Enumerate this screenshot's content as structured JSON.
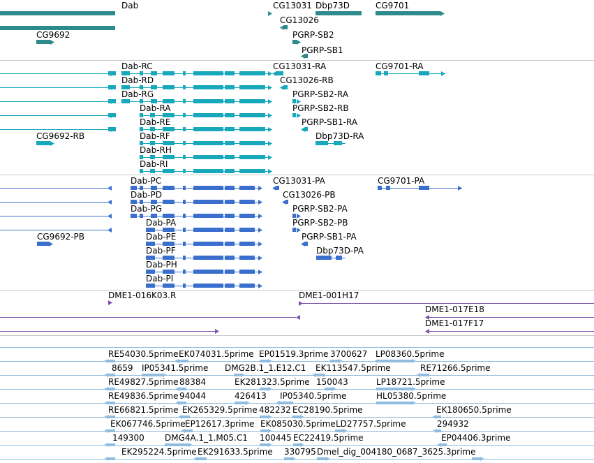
{
  "colors": {
    "gene": "#2e8b8b",
    "mrna": "#17a8bb",
    "cds": "#3a6fce",
    "clone": "#7b52ae",
    "est": "#8fbcdf",
    "separator": "#c8c8c8"
  },
  "tracks": [
    {
      "name": "gene",
      "labels": [
        "Dab",
        "CG13031",
        "Dbp73D",
        "CG9701",
        "CG13026",
        "CG9692",
        "PGRP-SB2",
        "PGRP-SB1"
      ]
    },
    {
      "name": "mrna",
      "labels": [
        "Dab-RC",
        "CG13031-RA",
        "CG9701-RA",
        "Dab-RD",
        "CG13026-RB",
        "Dab-RG",
        "PGRP-SB2-RA",
        "Dab-RA",
        "PGRP-SB2-RB",
        "Dab-RE",
        "PGRP-SB1-RA",
        "CG9692-RB",
        "Dab-RF",
        "Dbp73D-RA",
        "Dab-RH",
        "Dab-RI"
      ]
    },
    {
      "name": "cds",
      "labels": [
        "Dab-PC",
        "CG13031-PA",
        "CG9701-PA",
        "Dab-PD",
        "CG13026-PB",
        "Dab-PG",
        "PGRP-SB2-PA",
        "Dab-PA",
        "PGRP-SB2-PB",
        "CG9692-PB",
        "Dab-PE",
        "PGRP-SB1-PA",
        "Dab-PF",
        "Dbp73D-PA",
        "Dab-PH",
        "Dab-PI"
      ]
    },
    {
      "name": "clone",
      "labels": [
        "DME1-016K03.R",
        "DME1-001H17",
        "DME1-017E18",
        "DME1-017F17"
      ]
    },
    {
      "name": "est",
      "labels": [
        "RE54030.5prime",
        "EK074031.5prime",
        "EP01519.3prime",
        "3700627",
        "LP08360.5prime",
        "8659",
        "IP05341.5prime",
        "DMG2B.1_1.E12.C1",
        "EK113547.5prime",
        "RE71266.5prime",
        "RE49827.5prime",
        "88384",
        "EK281323.5prime",
        "150043",
        "LP18721.5prime",
        "RE49836.5prime",
        "94044",
        "426413",
        "IP05340.5prime",
        "HL05380.5prime",
        "RE66821.5prime",
        "EK265329.5prime",
        "482232",
        "EC28190.5prime",
        "EK180650.5prime",
        "EK067746.5prime",
        "EP12617.3prime",
        "EK085030.5prime",
        "LD27757.5prime",
        "294932",
        "149300",
        "DMG4A.1_1.M05.C1",
        "100445",
        "EC22419.5prime",
        "EP04406.3prime",
        "EK295224.5prime",
        "EK291633.5prime",
        "330795",
        "Dmel_dig_004180_0687_3625.3prime"
      ]
    }
  ]
}
